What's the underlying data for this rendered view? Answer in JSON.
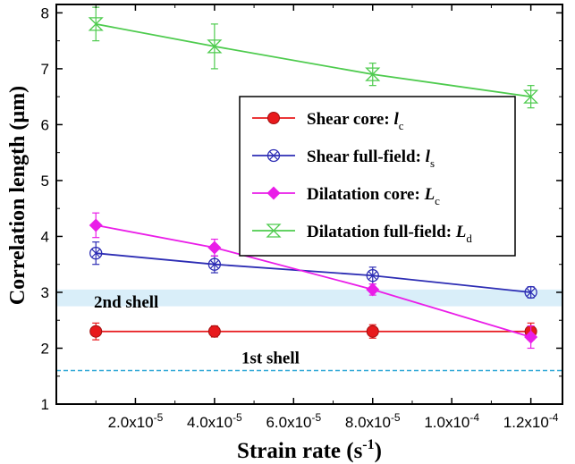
{
  "chart_data": {
    "type": "line",
    "xlabel": "Strain rate (s",
    "xlabel_sup": "-1",
    "xlabel_close": ")",
    "ylabel": "Correlation length (µm)",
    "xlim": [
      0,
      0.000128
    ],
    "ylim": [
      1,
      8.15
    ],
    "x_ticks": [
      {
        "value": 2e-05,
        "mantissa": "2.0x10",
        "exp": "-5"
      },
      {
        "value": 4e-05,
        "mantissa": "4.0x10",
        "exp": "-5"
      },
      {
        "value": 6e-05,
        "mantissa": "6.0x10",
        "exp": "-5"
      },
      {
        "value": 8e-05,
        "mantissa": "8.0x10",
        "exp": "-5"
      },
      {
        "value": 0.0001,
        "mantissa": "1.0x10",
        "exp": "-4"
      },
      {
        "value": 0.00012,
        "mantissa": "1.2x10",
        "exp": "-4"
      }
    ],
    "y_ticks": [
      1,
      2,
      3,
      4,
      5,
      6,
      7,
      8
    ],
    "legend_position": "center-right",
    "series": [
      {
        "name": "Shear core: ",
        "symbol": "l",
        "sub": "c",
        "color": "#e8191c",
        "marker": "filled-circle",
        "x": [
          1e-05,
          4e-05,
          8e-05,
          0.00012
        ],
        "y": [
          2.3,
          2.3,
          2.3,
          2.3
        ],
        "err": [
          0.15,
          0.1,
          0.12,
          0.15
        ]
      },
      {
        "name": "Shear full-field: ",
        "symbol": "l",
        "sub": "s",
        "color": "#2d2db4",
        "marker": "crossed-circle",
        "x": [
          1e-05,
          4e-05,
          8e-05,
          0.00012
        ],
        "y": [
          3.7,
          3.5,
          3.3,
          3.0
        ],
        "err": [
          0.2,
          0.15,
          0.15,
          0.1
        ]
      },
      {
        "name": "Dilatation core: ",
        "symbol": "L",
        "sub": "c",
        "color": "#ea1de8",
        "marker": "filled-diamond",
        "x": [
          1e-05,
          4e-05,
          8e-05,
          0.00012
        ],
        "y": [
          4.2,
          3.8,
          3.05,
          2.2
        ],
        "err": [
          0.22,
          0.15,
          0.1,
          0.2
        ]
      },
      {
        "name": "Dilatation full-field: ",
        "symbol": "L",
        "sub": "d",
        "color": "#4ecb4e",
        "marker": "hourglass",
        "x": [
          1e-05,
          4e-05,
          8e-05,
          0.00012
        ],
        "y": [
          7.8,
          7.4,
          6.9,
          6.5
        ],
        "err": [
          0.3,
          0.4,
          0.2,
          0.2
        ]
      }
    ],
    "annotations": {
      "second_shell": {
        "label": "2nd shell",
        "y_range": [
          2.75,
          3.05
        ],
        "color": "#d9eef9"
      },
      "first_shell": {
        "label": "1st shell",
        "y": 1.6,
        "color": "#2aa6d6"
      }
    }
  }
}
